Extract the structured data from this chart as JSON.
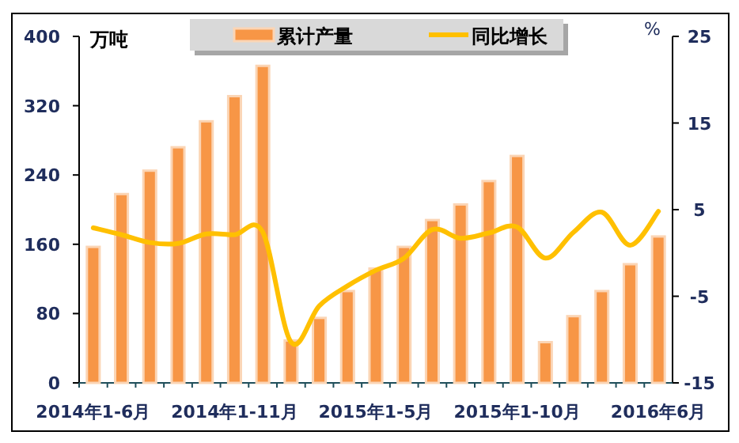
{
  "chart_data": {
    "type": "bar",
    "ylabel": "万吨",
    "y2label": "%",
    "categories": [
      "2014年1-6月",
      null,
      null,
      null,
      null,
      "2014年1-11月",
      null,
      null,
      null,
      null,
      "2015年1-5月",
      null,
      null,
      null,
      null,
      "2015年1-10月",
      null,
      null,
      null,
      null,
      "2016年6月"
    ],
    "series": [
      {
        "name": "累计产量",
        "color": "#f79646",
        "values": [
          157,
          218,
          245,
          272,
          302,
          331,
          366,
          49,
          75,
          106,
          132,
          157,
          188,
          206,
          233,
          262,
          47,
          77,
          106,
          137,
          169
        ]
      },
      {
        "name": "同比增长",
        "type": "line",
        "axis": "y2",
        "color": "#ffc000",
        "marker": "none",
        "values": [
          2.9,
          2.1,
          1.2,
          1.1,
          2.2,
          2.1,
          2.4,
          -10.3,
          -6.1,
          -3.8,
          -2.0,
          -0.6,
          2.7,
          1.7,
          2.3,
          3.0,
          -0.6,
          2.4,
          4.7,
          0.9,
          4.8
        ]
      }
    ],
    "ylim": [
      0,
      400
    ],
    "yticks": [
      0,
      80,
      160,
      240,
      320,
      400
    ],
    "y2lim": [
      -15,
      25
    ],
    "y2ticks": [
      -15,
      -5,
      5,
      15,
      25
    ],
    "legend": "top",
    "grid": false
  }
}
